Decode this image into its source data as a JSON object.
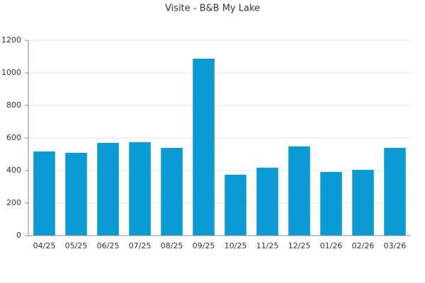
{
  "chart_data": {
    "type": "bar",
    "title": "Visite - B&B My Lake",
    "categories": [
      "04/25",
      "05/25",
      "06/25",
      "07/25",
      "08/25",
      "09/25",
      "10/25",
      "11/25",
      "12/25",
      "01/26",
      "02/26",
      "03/26"
    ],
    "values": [
      517,
      509,
      570,
      574,
      539,
      1087,
      374,
      417,
      548,
      391,
      404,
      539
    ],
    "color": "#0a9ad4",
    "ylim": [
      0,
      1200
    ],
    "yticks": [
      0,
      200,
      400,
      600,
      800,
      1000,
      1200
    ],
    "grid": true
  }
}
